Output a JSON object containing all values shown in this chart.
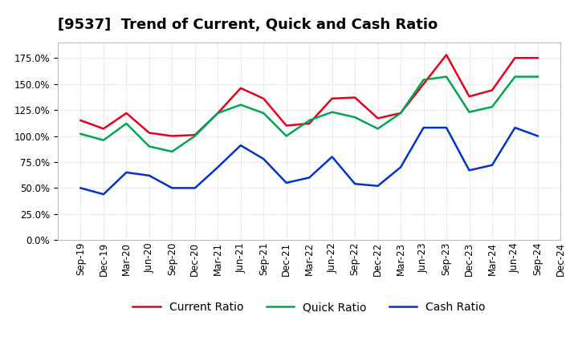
{
  "title": "[9537]  Trend of Current, Quick and Cash Ratio",
  "x_labels": [
    "Sep-19",
    "Dec-19",
    "Mar-20",
    "Jun-20",
    "Sep-20",
    "Dec-20",
    "Mar-21",
    "Jun-21",
    "Sep-21",
    "Dec-21",
    "Mar-22",
    "Jun-22",
    "Sep-22",
    "Dec-22",
    "Mar-23",
    "Jun-23",
    "Sep-23",
    "Dec-23",
    "Mar-24",
    "Jun-24",
    "Sep-24",
    "Dec-24"
  ],
  "current_ratio": [
    1.15,
    1.07,
    1.22,
    1.03,
    1.0,
    1.01,
    1.22,
    1.46,
    1.36,
    1.1,
    1.12,
    1.36,
    1.37,
    1.17,
    1.22,
    1.5,
    1.78,
    1.38,
    1.44,
    1.75,
    1.75,
    null
  ],
  "quick_ratio": [
    1.02,
    0.96,
    1.12,
    0.9,
    0.85,
    1.0,
    1.22,
    1.3,
    1.22,
    1.0,
    1.15,
    1.23,
    1.18,
    1.07,
    1.22,
    1.54,
    1.57,
    1.23,
    1.28,
    1.57,
    1.57,
    null
  ],
  "cash_ratio": [
    0.5,
    0.44,
    0.65,
    0.62,
    0.5,
    0.5,
    0.7,
    0.91,
    0.78,
    0.55,
    0.6,
    0.8,
    0.54,
    0.52,
    0.7,
    1.08,
    1.08,
    0.67,
    0.72,
    1.08,
    1.0,
    null
  ],
  "current_color": "#e8001c",
  "quick_color": "#00a650",
  "cash_color": "#0033cc",
  "background_color": "#ffffff",
  "plot_bg_color": "#ffffff",
  "grid_color": "#aaaaaa",
  "yticks": [
    0.0,
    0.25,
    0.5,
    0.75,
    1.0,
    1.25,
    1.5,
    1.75
  ],
  "ylim_min": 0.0,
  "ylim_max": 1.9,
  "title_fontsize": 13,
  "legend_fontsize": 10,
  "tick_fontsize": 8.5,
  "line_width": 1.8
}
